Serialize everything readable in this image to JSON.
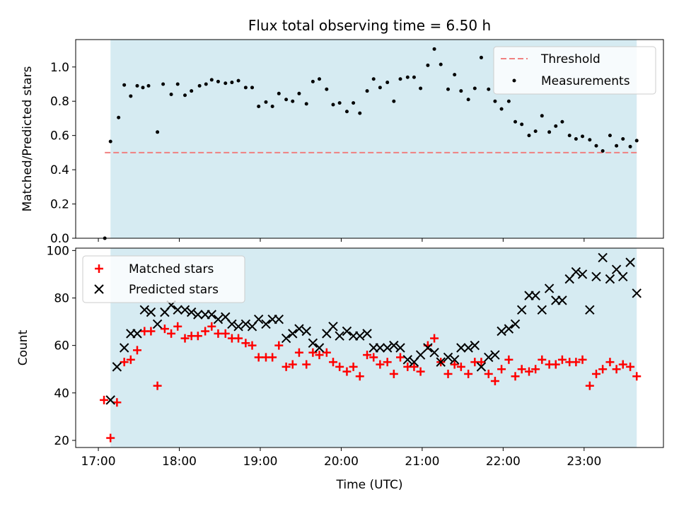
{
  "chart_data": [
    {
      "type": "scatter",
      "title": "Flux total observing time = 6.50 h",
      "ylabel": "Matched/Predicted stars",
      "xlabel": "",
      "x_units": "hours UTC",
      "xlim": [
        16.72,
        23.98
      ],
      "ylim": [
        0,
        1.16
      ],
      "yticks": [
        0.0,
        0.2,
        0.4,
        0.6,
        0.8,
        1.0
      ],
      "ytick_labels": [
        "0.0",
        "0.2",
        "0.4",
        "0.6",
        "0.8",
        "1.0"
      ],
      "observing_window": [
        17.15,
        23.65
      ],
      "window_color": "#add8e6",
      "threshold": {
        "label": "Threshold",
        "value": 0.5,
        "x_start": 17.08,
        "x_end": 23.65,
        "color": "#f08080"
      },
      "legend": {
        "placement": "top-right",
        "entries": [
          "Threshold",
          "Measurements"
        ]
      },
      "series": [
        {
          "name": "Measurements",
          "marker": "dot",
          "color": "#000000",
          "points": [
            [
              17.08,
              0.0
            ],
            [
              17.15,
              0.565
            ],
            [
              17.25,
              0.705
            ],
            [
              17.32,
              0.895
            ],
            [
              17.4,
              0.83
            ],
            [
              17.48,
              0.89
            ],
            [
              17.55,
              0.88
            ],
            [
              17.62,
              0.89
            ],
            [
              17.73,
              0.62
            ],
            [
              17.8,
              0.9
            ],
            [
              17.9,
              0.84
            ],
            [
              17.98,
              0.9
            ],
            [
              18.07,
              0.835
            ],
            [
              18.15,
              0.86
            ],
            [
              18.25,
              0.89
            ],
            [
              18.33,
              0.9
            ],
            [
              18.4,
              0.925
            ],
            [
              18.48,
              0.915
            ],
            [
              18.57,
              0.905
            ],
            [
              18.65,
              0.91
            ],
            [
              18.73,
              0.92
            ],
            [
              18.82,
              0.88
            ],
            [
              18.9,
              0.88
            ],
            [
              18.98,
              0.77
            ],
            [
              19.07,
              0.795
            ],
            [
              19.15,
              0.77
            ],
            [
              19.23,
              0.845
            ],
            [
              19.32,
              0.81
            ],
            [
              19.4,
              0.8
            ],
            [
              19.48,
              0.845
            ],
            [
              19.57,
              0.785
            ],
            [
              19.65,
              0.915
            ],
            [
              19.73,
              0.93
            ],
            [
              19.82,
              0.87
            ],
            [
              19.9,
              0.78
            ],
            [
              19.98,
              0.79
            ],
            [
              20.07,
              0.74
            ],
            [
              20.15,
              0.79
            ],
            [
              20.23,
              0.73
            ],
            [
              20.32,
              0.86
            ],
            [
              20.4,
              0.93
            ],
            [
              20.48,
              0.88
            ],
            [
              20.57,
              0.91
            ],
            [
              20.65,
              0.8
            ],
            [
              20.73,
              0.93
            ],
            [
              20.82,
              0.94
            ],
            [
              20.9,
              0.94
            ],
            [
              20.98,
              0.875
            ],
            [
              21.07,
              1.01
            ],
            [
              21.15,
              1.105
            ],
            [
              21.23,
              1.015
            ],
            [
              21.32,
              0.87
            ],
            [
              21.4,
              0.955
            ],
            [
              21.48,
              0.86
            ],
            [
              21.57,
              0.81
            ],
            [
              21.65,
              0.875
            ],
            [
              21.73,
              1.055
            ],
            [
              21.82,
              0.87
            ],
            [
              21.9,
              0.8
            ],
            [
              21.98,
              0.755
            ],
            [
              22.07,
              0.8
            ],
            [
              22.15,
              0.68
            ],
            [
              22.23,
              0.665
            ],
            [
              22.32,
              0.6
            ],
            [
              22.4,
              0.625
            ],
            [
              22.48,
              0.715
            ],
            [
              22.57,
              0.62
            ],
            [
              22.65,
              0.655
            ],
            [
              22.73,
              0.68
            ],
            [
              22.82,
              0.6
            ],
            [
              22.9,
              0.58
            ],
            [
              22.98,
              0.595
            ],
            [
              23.07,
              0.575
            ],
            [
              23.15,
              0.54
            ],
            [
              23.23,
              0.51
            ],
            [
              23.32,
              0.6
            ],
            [
              23.4,
              0.54
            ],
            [
              23.48,
              0.58
            ],
            [
              23.57,
              0.535
            ],
            [
              23.65,
              0.57
            ]
          ]
        }
      ]
    },
    {
      "type": "scatter",
      "title": "",
      "xlabel": "Time (UTC)",
      "ylabel": "Count",
      "xlim": [
        16.72,
        23.98
      ],
      "ylim": [
        17,
        101
      ],
      "xticks": [
        17,
        18,
        19,
        20,
        21,
        22,
        23
      ],
      "xtick_labels": [
        "17:00",
        "18:00",
        "19:00",
        "20:00",
        "21:00",
        "22:00",
        "23:00"
      ],
      "yticks": [
        20,
        40,
        60,
        80,
        100
      ],
      "ytick_labels": [
        "20",
        "40",
        "60",
        "80",
        "100"
      ],
      "observing_window": [
        17.15,
        23.65
      ],
      "window_color": "#add8e6",
      "legend": {
        "placement": "top-left",
        "entries": [
          "Matched stars",
          "Predicted stars"
        ]
      },
      "series": [
        {
          "name": "Matched stars",
          "marker": "plus",
          "color": "#ff0000",
          "points": [
            [
              17.07,
              37
            ],
            [
              17.15,
              21
            ],
            [
              17.23,
              36
            ],
            [
              17.32,
              53
            ],
            [
              17.4,
              54
            ],
            [
              17.48,
              58
            ],
            [
              17.57,
              66
            ],
            [
              17.65,
              66
            ],
            [
              17.73,
              43
            ],
            [
              17.82,
              67
            ],
            [
              17.9,
              65
            ],
            [
              17.98,
              68
            ],
            [
              18.07,
              63
            ],
            [
              18.15,
              64
            ],
            [
              18.23,
              64
            ],
            [
              18.32,
              66
            ],
            [
              18.4,
              68
            ],
            [
              18.48,
              65
            ],
            [
              18.57,
              65
            ],
            [
              18.65,
              63
            ],
            [
              18.73,
              63
            ],
            [
              18.82,
              61
            ],
            [
              18.9,
              60
            ],
            [
              18.98,
              55
            ],
            [
              19.07,
              55
            ],
            [
              19.15,
              55
            ],
            [
              19.23,
              60
            ],
            [
              19.32,
              51
            ],
            [
              19.4,
              52
            ],
            [
              19.48,
              57
            ],
            [
              19.57,
              52
            ],
            [
              19.65,
              57
            ],
            [
              19.73,
              56
            ],
            [
              19.82,
              57
            ],
            [
              19.9,
              53
            ],
            [
              19.98,
              51
            ],
            [
              20.07,
              49
            ],
            [
              20.15,
              51
            ],
            [
              20.23,
              47
            ],
            [
              20.32,
              56
            ],
            [
              20.4,
              55
            ],
            [
              20.48,
              52
            ],
            [
              20.57,
              53
            ],
            [
              20.65,
              48
            ],
            [
              20.73,
              55
            ],
            [
              20.82,
              51
            ],
            [
              20.9,
              51
            ],
            [
              20.98,
              49
            ],
            [
              21.07,
              60
            ],
            [
              21.15,
              63
            ],
            [
              21.23,
              53
            ],
            [
              21.32,
              48
            ],
            [
              21.4,
              52
            ],
            [
              21.48,
              51
            ],
            [
              21.57,
              48
            ],
            [
              21.65,
              53
            ],
            [
              21.73,
              53
            ],
            [
              21.82,
              48
            ],
            [
              21.9,
              45
            ],
            [
              21.98,
              50
            ],
            [
              22.07,
              54
            ],
            [
              22.15,
              47
            ],
            [
              22.23,
              50
            ],
            [
              22.32,
              49
            ],
            [
              22.4,
              50
            ],
            [
              22.48,
              54
            ],
            [
              22.57,
              52
            ],
            [
              22.65,
              52
            ],
            [
              22.73,
              54
            ],
            [
              22.82,
              53
            ],
            [
              22.9,
              53
            ],
            [
              22.98,
              54
            ],
            [
              23.07,
              43
            ],
            [
              23.15,
              48
            ],
            [
              23.23,
              50
            ],
            [
              23.32,
              53
            ],
            [
              23.4,
              50
            ],
            [
              23.48,
              52
            ],
            [
              23.57,
              51
            ],
            [
              23.65,
              47
            ]
          ]
        },
        {
          "name": "Predicted stars",
          "marker": "x",
          "color": "#000000",
          "points": [
            [
              17.15,
              37
            ],
            [
              17.23,
              51
            ],
            [
              17.32,
              59
            ],
            [
              17.4,
              65
            ],
            [
              17.48,
              65
            ],
            [
              17.57,
              75
            ],
            [
              17.65,
              74
            ],
            [
              17.73,
              69
            ],
            [
              17.82,
              74
            ],
            [
              17.9,
              77
            ],
            [
              17.98,
              75
            ],
            [
              18.07,
              75
            ],
            [
              18.15,
              74
            ],
            [
              18.23,
              73
            ],
            [
              18.32,
              73
            ],
            [
              18.4,
              73
            ],
            [
              18.48,
              71
            ],
            [
              18.57,
              72
            ],
            [
              18.65,
              69
            ],
            [
              18.73,
              68
            ],
            [
              18.82,
              69
            ],
            [
              18.9,
              68
            ],
            [
              18.98,
              71
            ],
            [
              19.07,
              69
            ],
            [
              19.15,
              71
            ],
            [
              19.23,
              71
            ],
            [
              19.32,
              63
            ],
            [
              19.4,
              65
            ],
            [
              19.48,
              67
            ],
            [
              19.57,
              66
            ],
            [
              19.65,
              61
            ],
            [
              19.73,
              59
            ],
            [
              19.82,
              65
            ],
            [
              19.9,
              68
            ],
            [
              19.98,
              64
            ],
            [
              20.07,
              66
            ],
            [
              20.15,
              64
            ],
            [
              20.23,
              64
            ],
            [
              20.32,
              65
            ],
            [
              20.4,
              59
            ],
            [
              20.48,
              59
            ],
            [
              20.57,
              59
            ],
            [
              20.65,
              60
            ],
            [
              20.73,
              59
            ],
            [
              20.82,
              54
            ],
            [
              20.9,
              53
            ],
            [
              20.98,
              56
            ],
            [
              21.07,
              59
            ],
            [
              21.15,
              57
            ],
            [
              21.23,
              53
            ],
            [
              21.32,
              55
            ],
            [
              21.4,
              54
            ],
            [
              21.48,
              59
            ],
            [
              21.57,
              59
            ],
            [
              21.65,
              60
            ],
            [
              21.73,
              51
            ],
            [
              21.82,
              55
            ],
            [
              21.9,
              56
            ],
            [
              21.98,
              66
            ],
            [
              22.07,
              67
            ],
            [
              22.15,
              69
            ],
            [
              22.23,
              75
            ],
            [
              22.32,
              81
            ],
            [
              22.4,
              81
            ],
            [
              22.48,
              75
            ],
            [
              22.57,
              84
            ],
            [
              22.65,
              79
            ],
            [
              22.73,
              79
            ],
            [
              22.82,
              88
            ],
            [
              22.9,
              91
            ],
            [
              22.98,
              90
            ],
            [
              23.07,
              75
            ],
            [
              23.15,
              89
            ],
            [
              23.23,
              97
            ],
            [
              23.32,
              88
            ],
            [
              23.4,
              92
            ],
            [
              23.48,
              89
            ],
            [
              23.57,
              95
            ],
            [
              23.65,
              82
            ]
          ]
        }
      ]
    }
  ]
}
